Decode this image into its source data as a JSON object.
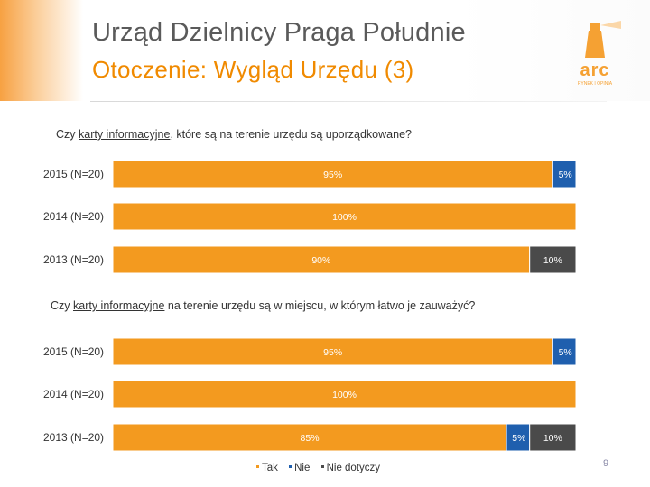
{
  "header": {
    "title": "Urząd Dzielnicy Praga Południe",
    "subtitle": "Otoczenie: Wygląd Urzędu (3)"
  },
  "logo": {
    "wordmark": "arc",
    "tagline": "RYNEK I OPINIA",
    "color": "#f5a133"
  },
  "colors": {
    "tak": "#f39a1f",
    "nie": "#1f5fae",
    "nie_dotyczy": "#4a4a4a"
  },
  "chart_data": [
    {
      "type": "bar",
      "orientation": "horizontal",
      "stacked": true,
      "title_pre": "Czy ",
      "title_u": "karty informacyjne",
      "title_post": ", które są na terenie urzędu są uporządkowane?",
      "categories": [
        "2015 (N=20)",
        "2014 (N=20)",
        "2013 (N=20)"
      ],
      "series": [
        {
          "name": "Tak",
          "values": [
            95,
            100,
            90
          ]
        },
        {
          "name": "Nie",
          "values": [
            5,
            0,
            0
          ]
        },
        {
          "name": "Nie dotyczy",
          "values": [
            0,
            0,
            10
          ]
        }
      ],
      "value_suffix": "%",
      "xlim": [
        0,
        100
      ]
    },
    {
      "type": "bar",
      "orientation": "horizontal",
      "stacked": true,
      "title_pre": "Czy ",
      "title_u": "karty informacyjne",
      "title_post": " na terenie urzędu są w miejscu, w którym łatwo je zauważyć?",
      "categories": [
        "2015 (N=20)",
        "2014 (N=20)",
        "2013 (N=20)"
      ],
      "series": [
        {
          "name": "Tak",
          "values": [
            95,
            100,
            85
          ]
        },
        {
          "name": "Nie",
          "values": [
            5,
            0,
            5
          ]
        },
        {
          "name": "Nie dotyczy",
          "values": [
            0,
            0,
            10
          ]
        }
      ],
      "value_suffix": "%",
      "xlim": [
        0,
        100
      ]
    }
  ],
  "legend": {
    "items": [
      "Tak",
      "Nie",
      "Nie dotyczy"
    ]
  },
  "page_number": "9"
}
